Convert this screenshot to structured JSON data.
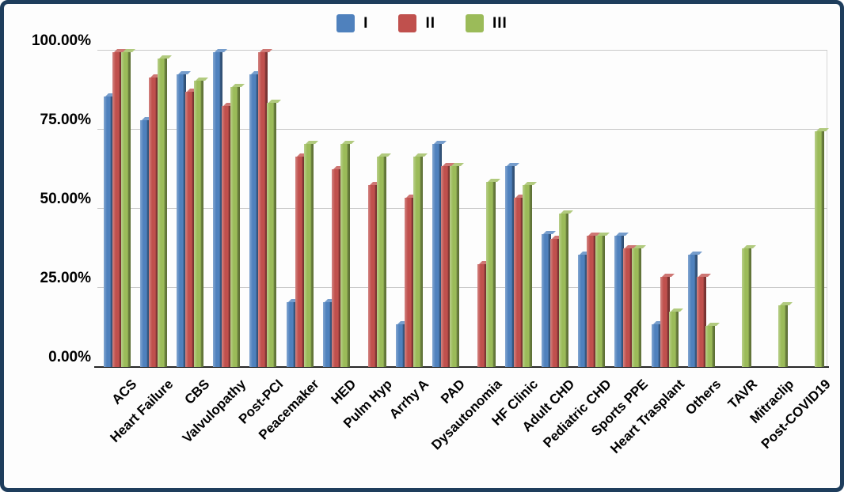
{
  "frame": {
    "border_color": "#1e3d5c",
    "background_color": "#fdfdfd"
  },
  "legend": {
    "items": [
      {
        "label": "I",
        "color": "#4F81BD"
      },
      {
        "label": "II",
        "color": "#C0504D"
      },
      {
        "label": "III",
        "color": "#9BBB59"
      }
    ]
  },
  "chart_data": {
    "type": "bar",
    "title": "",
    "xlabel": "",
    "ylabel": "",
    "ylim": [
      0,
      100
    ],
    "ytick_step": 25,
    "ytick_labels": [
      "0.00%",
      "25.00%",
      "50.00%",
      "75.00%",
      "100.00%"
    ],
    "grid": true,
    "legend_position": "top-center",
    "bar_style": "3d-column",
    "categories": [
      "ACS",
      "Heart Failure",
      "CBS",
      "Valvulopathy",
      "Post-PCI",
      "Peacemaker",
      "HED",
      "Pulm Hyp",
      "Arrhy A",
      "PAD",
      "Dysautonomia",
      "HF Clinic",
      "Adult CHD",
      "Pediatric CHD",
      "Sports PPE",
      "Heart Trasplant",
      "Others",
      "TAVR",
      "Mitraclip",
      "Post-COVID19"
    ],
    "series": [
      {
        "name": "I",
        "color": "#4F81BD",
        "values": [
          85.5,
          78.0,
          92.5,
          99.5,
          92.5,
          20.5,
          20.5,
          0,
          13.5,
          70.5,
          0,
          63.5,
          42.0,
          35.5,
          41.5,
          13.5,
          35.5,
          0,
          0,
          0
        ]
      },
      {
        "name": "II",
        "color": "#C0504D",
        "values": [
          99.5,
          91.5,
          87.0,
          82.5,
          99.5,
          66.5,
          62.5,
          57.5,
          53.5,
          63.5,
          32.5,
          53.5,
          40.5,
          41.5,
          37.5,
          28.5,
          28.5,
          0,
          0,
          0
        ]
      },
      {
        "name": "III",
        "color": "#9BBB59",
        "values": [
          99.5,
          97.5,
          90.5,
          88.5,
          83.5,
          70.5,
          70.5,
          66.5,
          66.5,
          63.5,
          58.5,
          57.5,
          48.5,
          41.5,
          37.5,
          17.5,
          13.0,
          37.5,
          19.5,
          74.5
        ]
      }
    ]
  }
}
